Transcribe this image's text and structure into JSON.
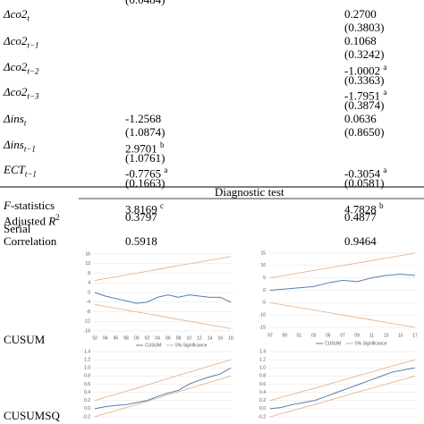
{
  "top_cropped": "(0.0484)",
  "rows": [
    {
      "label": {
        "base": "Δco2",
        "sub": "t"
      },
      "c2": "0.2700",
      "c2_se": "(0.3803)"
    },
    {
      "label": {
        "base": "Δco2",
        "sub": "t−1"
      },
      "c2": "0.1068",
      "c2_se": "(0.3242)"
    },
    {
      "label": {
        "base": "Δco2",
        "sub": "t−2"
      },
      "c2": "-1.0002",
      "c2_sup": "a",
      "c2_se": "(0.3363)"
    },
    {
      "label": {
        "base": "Δco2",
        "sub": "t−3"
      },
      "c2": "-1.7951",
      "c2_sup": "a",
      "c2_se": "(0.3874)"
    },
    {
      "label": {
        "base": "Δins",
        "sub": "t"
      },
      "c1": "-1.2568",
      "c1_se": "(1.0874)",
      "c2": "0.0636",
      "c2_se": "(0.8650)"
    },
    {
      "label": {
        "base": "Δins",
        "sub": "t−1"
      },
      "c1": "2.9701",
      "c1_sup": "b",
      "c1_se": "(1.0761)"
    },
    {
      "label": {
        "base": "ECT",
        "sub": "t−1"
      },
      "c1": "-0.7765",
      "c1_sup": "a",
      "c1_se": "(0.1663)",
      "c2": "-0.3054",
      "c2_sup": "a",
      "c2_se": "(0.0581)"
    }
  ],
  "diagnostic_header": "Diagnostic test",
  "diagnostics": [
    {
      "label_italic": "F",
      "label": "-statistics",
      "c1": "3.8169",
      "c1_sup": "c",
      "c2": "4.7828",
      "c2_sup": "b"
    },
    {
      "label": "Adjusted ",
      "label_italic": "R",
      "label_sup": "2",
      "c1": "0.3797",
      "c2": "0.4877"
    },
    {
      "label": "Serial",
      "label2": "Correlation",
      "c1": "0.5918",
      "c2": "0.9464"
    }
  ],
  "stability": [
    {
      "label": "CUSUM"
    },
    {
      "label": "CUSUMSQ"
    }
  ],
  "charts": [
    {
      "type": "line",
      "ylim": [
        -16,
        16
      ],
      "yticks": [
        16,
        12,
        8,
        4,
        0,
        -4,
        -8,
        -12,
        -16
      ],
      "categories": [
        "92",
        "94",
        "96",
        "98",
        "00",
        "02",
        "04",
        "06",
        "08",
        "10",
        "12",
        "14",
        "16",
        "18"
      ],
      "series": [
        {
          "name": "CUSUM",
          "color": "#5a7cb0",
          "values": [
            0,
            -1.5,
            -2.5,
            -3.5,
            -4.5,
            -4,
            -2,
            -1,
            -2,
            -1,
            -1.5,
            -2,
            -2,
            -4
          ]
        },
        {
          "name": "5% Significance",
          "color": "#e3ab82",
          "values": [
            5,
            5.8,
            6.5,
            7.3,
            8.1,
            8.8,
            9.6,
            10.4,
            11.2,
            11.9,
            12.7,
            13.5,
            14.2,
            15
          ]
        },
        {
          "color": "#e3ab82",
          "values": [
            -5,
            -5.8,
            -6.5,
            -7.3,
            -8.1,
            -8.8,
            -9.6,
            -10.4,
            -11.2,
            -11.9,
            -12.7,
            -13.5,
            -14.2,
            -15
          ]
        }
      ]
    },
    {
      "type": "line",
      "ylim": [
        -15,
        15
      ],
      "yticks": [
        15,
        10,
        5,
        0,
        -5,
        -10,
        -15
      ],
      "categories": [
        "97",
        "99",
        "01",
        "03",
        "05",
        "07",
        "09",
        "11",
        "13",
        "15",
        "17"
      ],
      "series": [
        {
          "name": "CUSUM",
          "color": "#5a7cb0",
          "values": [
            0,
            0.5,
            1,
            1.5,
            3,
            4,
            3.5,
            5,
            6,
            6.5,
            6
          ]
        },
        {
          "name": "5% Significance",
          "color": "#e3ab82",
          "values": [
            5,
            6,
            7,
            8,
            9,
            10,
            11,
            12,
            13,
            14,
            15
          ]
        },
        {
          "color": "#e3ab82",
          "values": [
            -5,
            -6,
            -7,
            -8,
            -9,
            -10,
            -11,
            -12,
            -13,
            -14,
            -15
          ]
        }
      ]
    },
    {
      "type": "line",
      "ylim": [
        -0.2,
        1.4
      ],
      "yticks": [
        1.4,
        1.2,
        1.0,
        0.8,
        0.6,
        0.4,
        0.2,
        0.0,
        -0.2
      ],
      "series": [
        {
          "color": "#5a7cb0",
          "values": [
            0,
            0.05,
            0.08,
            0.1,
            0.15,
            0.2,
            0.3,
            0.38,
            0.45,
            0.6,
            0.7,
            0.78,
            0.85,
            1.0
          ]
        },
        {
          "color": "#e3ab82",
          "values": [
            0.2,
            0.28,
            0.35,
            0.43,
            0.5,
            0.58,
            0.66,
            0.74,
            0.82,
            0.89,
            0.97,
            1.05,
            1.12,
            1.2
          ]
        },
        {
          "color": "#e3ab82",
          "values": [
            -0.2,
            -0.12,
            -0.05,
            0.03,
            0.1,
            0.18,
            0.26,
            0.34,
            0.42,
            0.49,
            0.57,
            0.65,
            0.72,
            0.8
          ]
        }
      ]
    },
    {
      "type": "line",
      "ylim": [
        -0.2,
        1.4
      ],
      "yticks": [
        1.4,
        1.2,
        1.0,
        0.8,
        0.6,
        0.4,
        0.2,
        0.0,
        -0.2
      ],
      "series": [
        {
          "color": "#5a7cb0",
          "values": [
            0,
            0.03,
            0.1,
            0.15,
            0.2,
            0.3,
            0.4,
            0.5,
            0.6,
            0.7,
            0.8,
            0.9,
            0.95,
            1.0
          ]
        },
        {
          "color": "#e3ab82",
          "values": [
            0.2,
            0.28,
            0.35,
            0.43,
            0.5,
            0.58,
            0.66,
            0.74,
            0.82,
            0.89,
            0.97,
            1.05,
            1.12,
            1.2
          ]
        },
        {
          "color": "#e3ab82",
          "values": [
            -0.2,
            -0.12,
            -0.05,
            0.03,
            0.1,
            0.18,
            0.26,
            0.34,
            0.42,
            0.49,
            0.57,
            0.65,
            0.72,
            0.8
          ]
        }
      ]
    }
  ]
}
